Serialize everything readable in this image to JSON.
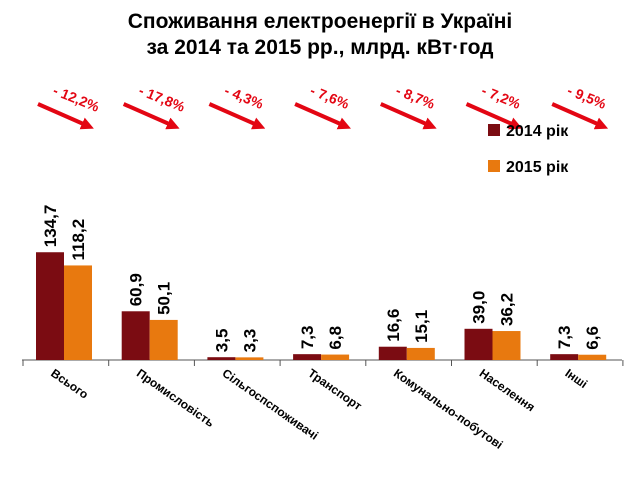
{
  "chart_data": {
    "type": "bar",
    "title": [
      "Споживання електроенергії в Україні",
      "за 2014 та 2015 рр., млрд. кВт·год"
    ],
    "categories": [
      "Всього",
      "Промисловість",
      "Сільгоспспоживачі",
      "Транспорт",
      "Комунально-побутові",
      "Населення",
      "Інші"
    ],
    "series": [
      {
        "name": "2014 рік",
        "color": "#7b0c12",
        "values": [
          134.7,
          60.9,
          3.5,
          7.3,
          16.6,
          39.0,
          7.3
        ],
        "labels": [
          "134,7",
          "60,9",
          "3,5",
          "7,3",
          "16,6",
          "39,0",
          "7,3"
        ]
      },
      {
        "name": "2015 рік",
        "color": "#e8790f",
        "values": [
          118.2,
          50.1,
          3.3,
          6.8,
          15.1,
          36.2,
          6.6
        ],
        "labels": [
          "118,2",
          "50,1",
          "3,3",
          "6,8",
          "15,1",
          "36,2",
          "6,6"
        ]
      }
    ],
    "changes": [
      "- 12,2%",
      "- 17,8%",
      "- 4,3%",
      "- 7,6%",
      "- 8,7%",
      "- 7,2%",
      "- 9,5%"
    ],
    "change_color": "#e30613",
    "ylim": [
      0,
      170
    ],
    "grid": false,
    "legend": "top-right"
  }
}
